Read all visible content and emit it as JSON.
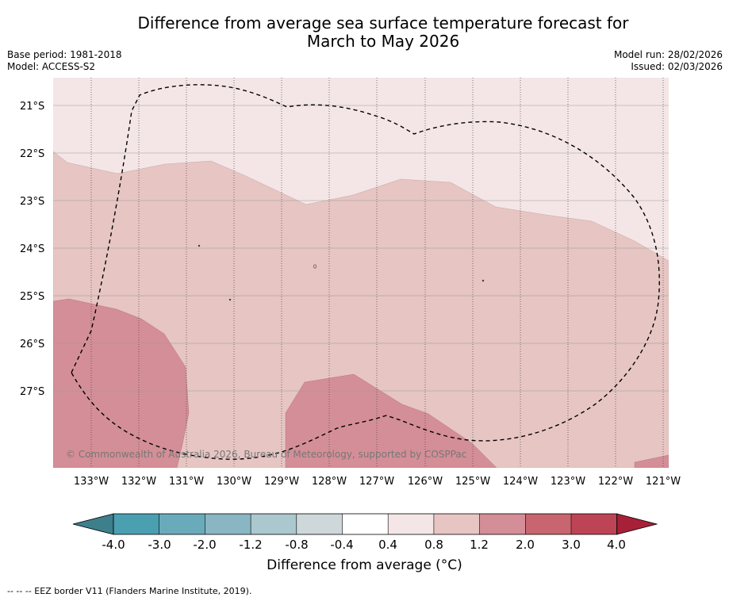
{
  "header": {
    "title_line1": "Difference from average sea surface temperature forecast for",
    "title_line2": "March to May 2026",
    "base_period": "Base period: 1981-2018",
    "model": "Model: ACCESS-S2",
    "model_run": "Model run: 28/02/2026",
    "issued": "Issued: 02/03/2026"
  },
  "map": {
    "lat_labels": [
      "21°S",
      "22°S",
      "23°S",
      "24°S",
      "25°S",
      "26°S",
      "27°S"
    ],
    "lon_labels": [
      "133°W",
      "132°W",
      "131°W",
      "130°W",
      "129°W",
      "128°W",
      "127°W",
      "126°W",
      "125°W",
      "124°W",
      "123°W",
      "122°W",
      "121°W"
    ],
    "copyright": "© Commonwealth of Australia 2026, Bureau of Meteorology, supported by COSPPac"
  },
  "colorbar": {
    "tick_labels": [
      "-4.0",
      "-3.0",
      "-2.0",
      "-1.2",
      "-0.8",
      "-0.4",
      "0.4",
      "0.8",
      "1.2",
      "2.0",
      "3.0",
      "4.0"
    ],
    "colors": [
      "#3e7f8c",
      "#4a9fb1",
      "#6aabbb",
      "#8ab6c3",
      "#aac8cd",
      "#ced8da",
      "#ffffff",
      "#f4e6e6",
      "#e6c5c3",
      "#d48e97",
      "#c9656f",
      "#bd4455",
      "#a82038"
    ],
    "label": "Difference from average (°C)"
  },
  "footnote": "--  --  -- EEZ border V11 (Flanders Marine Institute, 2019)."
}
